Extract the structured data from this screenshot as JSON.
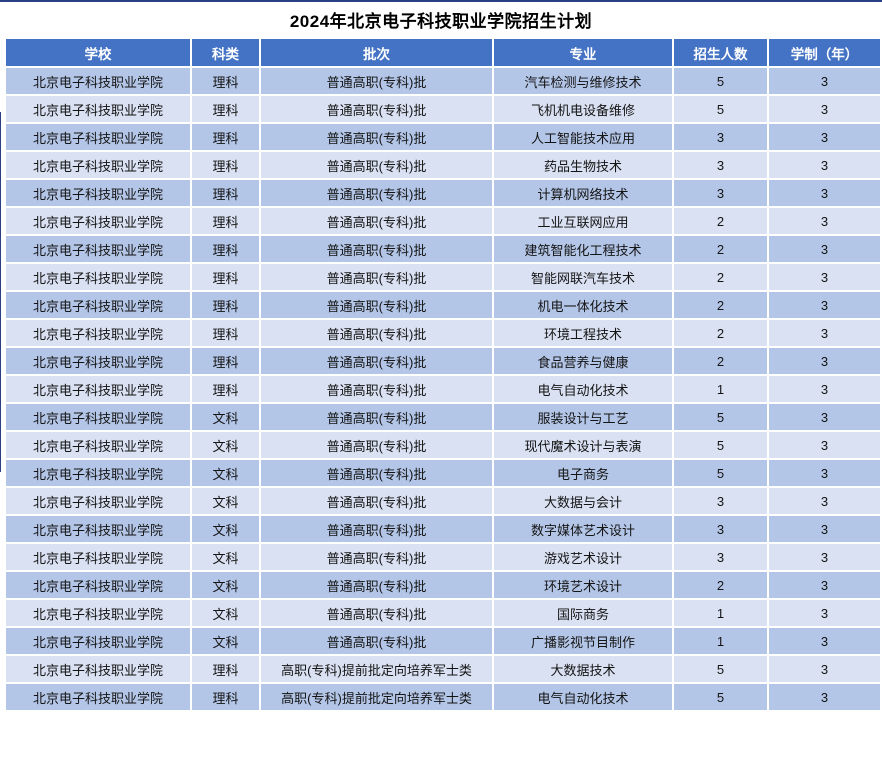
{
  "title": "2024年北京电子科技职业学院招生计划",
  "colors": {
    "header_bg": "#4472C4",
    "header_text": "#FFFFFF",
    "row_band_dark": "#B4C6E7",
    "row_band_light": "#D9E1F2",
    "cell_border": "#FFFFFF",
    "frame_line": "#2B3F86",
    "title_text": "#000000",
    "cell_text": "#141414"
  },
  "chart_data": {
    "type": "table",
    "title": "2024年北京电子科技职业学院招生计划",
    "columns": [
      "学校",
      "科类",
      "批次",
      "专业",
      "招生人数",
      "学制（年）"
    ],
    "rows": [
      [
        "北京电子科技职业学院",
        "理科",
        "普通高职(专科)批",
        "汽车检测与维修技术",
        "5",
        "3"
      ],
      [
        "北京电子科技职业学院",
        "理科",
        "普通高职(专科)批",
        "飞机机电设备维修",
        "5",
        "3"
      ],
      [
        "北京电子科技职业学院",
        "理科",
        "普通高职(专科)批",
        "人工智能技术应用",
        "3",
        "3"
      ],
      [
        "北京电子科技职业学院",
        "理科",
        "普通高职(专科)批",
        "药品生物技术",
        "3",
        "3"
      ],
      [
        "北京电子科技职业学院",
        "理科",
        "普通高职(专科)批",
        "计算机网络技术",
        "3",
        "3"
      ],
      [
        "北京电子科技职业学院",
        "理科",
        "普通高职(专科)批",
        "工业互联网应用",
        "2",
        "3"
      ],
      [
        "北京电子科技职业学院",
        "理科",
        "普通高职(专科)批",
        "建筑智能化工程技术",
        "2",
        "3"
      ],
      [
        "北京电子科技职业学院",
        "理科",
        "普通高职(专科)批",
        "智能网联汽车技术",
        "2",
        "3"
      ],
      [
        "北京电子科技职业学院",
        "理科",
        "普通高职(专科)批",
        "机电一体化技术",
        "2",
        "3"
      ],
      [
        "北京电子科技职业学院",
        "理科",
        "普通高职(专科)批",
        "环境工程技术",
        "2",
        "3"
      ],
      [
        "北京电子科技职业学院",
        "理科",
        "普通高职(专科)批",
        "食品营养与健康",
        "2",
        "3"
      ],
      [
        "北京电子科技职业学院",
        "理科",
        "普通高职(专科)批",
        "电气自动化技术",
        "1",
        "3"
      ],
      [
        "北京电子科技职业学院",
        "文科",
        "普通高职(专科)批",
        "服装设计与工艺",
        "5",
        "3"
      ],
      [
        "北京电子科技职业学院",
        "文科",
        "普通高职(专科)批",
        "现代魔术设计与表演",
        "5",
        "3"
      ],
      [
        "北京电子科技职业学院",
        "文科",
        "普通高职(专科)批",
        "电子商务",
        "5",
        "3"
      ],
      [
        "北京电子科技职业学院",
        "文科",
        "普通高职(专科)批",
        "大数据与会计",
        "3",
        "3"
      ],
      [
        "北京电子科技职业学院",
        "文科",
        "普通高职(专科)批",
        "数字媒体艺术设计",
        "3",
        "3"
      ],
      [
        "北京电子科技职业学院",
        "文科",
        "普通高职(专科)批",
        "游戏艺术设计",
        "3",
        "3"
      ],
      [
        "北京电子科技职业学院",
        "文科",
        "普通高职(专科)批",
        "环境艺术设计",
        "2",
        "3"
      ],
      [
        "北京电子科技职业学院",
        "文科",
        "普通高职(专科)批",
        "国际商务",
        "1",
        "3"
      ],
      [
        "北京电子科技职业学院",
        "文科",
        "普通高职(专科)批",
        "广播影视节目制作",
        "1",
        "3"
      ],
      [
        "北京电子科技职业学院",
        "理科",
        "高职(专科)提前批定向培养军士类",
        "大数据技术",
        "5",
        "3"
      ],
      [
        "北京电子科技职业学院",
        "理科",
        "高职(专科)提前批定向培养军士类",
        "电气自动化技术",
        "5",
        "3"
      ]
    ]
  }
}
